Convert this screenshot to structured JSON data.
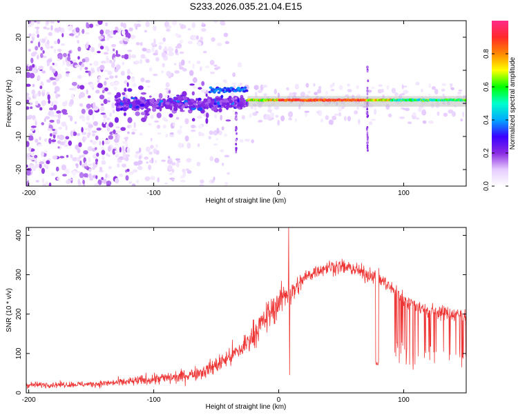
{
  "figure": {
    "title": "S233.2026.035.21.04.E15"
  },
  "chart_data": [
    {
      "type": "heatmap",
      "xlabel": "Height of straight line (km)",
      "ylabel": "Frequency (Hz)",
      "xlim": [
        -202,
        150
      ],
      "ylim": [
        -25,
        25
      ],
      "xticks": [
        -200,
        -100,
        0,
        100
      ],
      "yticks": [
        -20,
        -10,
        0,
        10,
        20
      ],
      "colorbar": {
        "label": "Normalized spectral amplitude",
        "range": [
          0,
          1
        ],
        "ticks": [
          "0.0",
          "0.2",
          "0.4",
          "0.6",
          "0.8"
        ],
        "colormap": [
          "#ffffff",
          "#e6ccff",
          "#8a2be2",
          "#3a00ff",
          "#00aaff",
          "#00ffcc",
          "#00ff00",
          "#ffff00",
          "#ff8800",
          "#ff2a2a",
          "#ff2a8a"
        ]
      },
      "dominant_tone": {
        "frequency_hz": 1,
        "x_range_km": [
          -25,
          150
        ],
        "peak_amplitude": 0.95
      },
      "grid": false
    },
    {
      "type": "line",
      "xlabel": "Height of straight line (km)",
      "ylabel": "SNR (10 * v/v)",
      "xlim": [
        -202,
        150
      ],
      "ylim": [
        0,
        420
      ],
      "xticks": [
        -200,
        -100,
        0,
        100
      ],
      "yticks": [
        0,
        100,
        200,
        300,
        400
      ],
      "line_color": "#ee3333",
      "grid": false,
      "envelope_x": [
        -202,
        -150,
        -120,
        -100,
        -80,
        -60,
        -50,
        -40,
        -30,
        -20,
        -10,
        0,
        8,
        10,
        20,
        30,
        40,
        50,
        60,
        70,
        75,
        80,
        85,
        90,
        100,
        110,
        120,
        130,
        140,
        150
      ],
      "envelope_mean": [
        20,
        22,
        28,
        35,
        40,
        55,
        70,
        90,
        110,
        150,
        190,
        230,
        260,
        250,
        290,
        310,
        320,
        320,
        315,
        300,
        300,
        290,
        280,
        265,
        240,
        220,
        210,
        205,
        200,
        200
      ],
      "envelope_noise": [
        10,
        10,
        15,
        20,
        22,
        25,
        30,
        35,
        40,
        45,
        50,
        55,
        50,
        45,
        25,
        25,
        25,
        25,
        25,
        25,
        25,
        25,
        25,
        25,
        25,
        25,
        25,
        25,
        25,
        25
      ],
      "dropouts": [
        {
          "x_range_km": [
            77.5,
            80
          ],
          "min_snr": 70
        },
        {
          "x_range_km": [
            92,
            150
          ],
          "min_snr": 40
        }
      ],
      "spikes": [
        {
          "x_km": 8,
          "peak_snr": 420
        },
        {
          "x_km": 8.7,
          "min_snr": 45
        }
      ]
    }
  ]
}
